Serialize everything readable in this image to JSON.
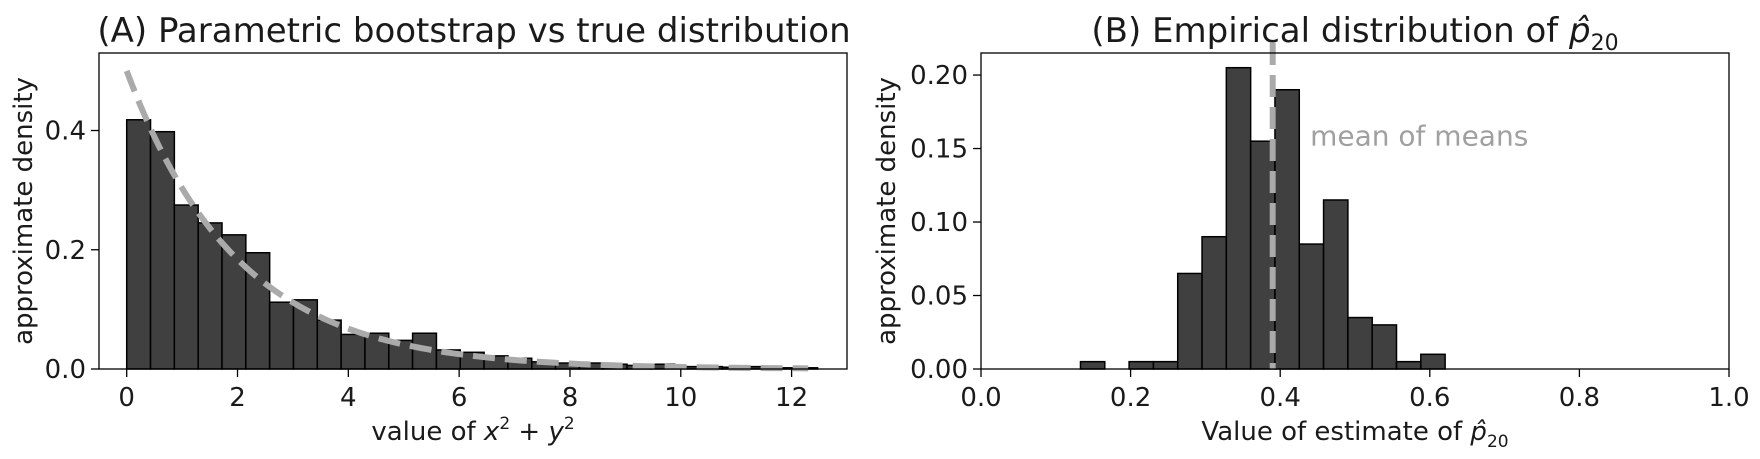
{
  "chart_data": [
    {
      "type": "bar",
      "title": "(A) Parametric bootstrap vs true distribution",
      "xlabel": "value of x² + y²",
      "ylabel": "approximate density",
      "xlim": [
        -0.5,
        13.0
      ],
      "ylim": [
        0,
        0.53
      ],
      "xticks": [
        0,
        2,
        4,
        6,
        8,
        10,
        12
      ],
      "yticks": [
        0.0,
        0.2,
        0.4
      ],
      "ytick_decimals": 1,
      "grid": false,
      "bin_edges": [
        0,
        0.43,
        0.86,
        1.29,
        1.72,
        2.15,
        2.58,
        3.01,
        3.44,
        3.87,
        4.3,
        4.73,
        5.16,
        5.59,
        6.02,
        6.45,
        6.88,
        7.31,
        7.74,
        8.17,
        8.6,
        9.03,
        9.46,
        9.89,
        10.32,
        10.75,
        11.18,
        11.61,
        12.04,
        12.47
      ],
      "values": [
        0.418,
        0.398,
        0.275,
        0.245,
        0.225,
        0.195,
        0.112,
        0.116,
        0.082,
        0.058,
        0.06,
        0.048,
        0.06,
        0.032,
        0.028,
        0.022,
        0.018,
        0.012,
        0.01,
        0.01,
        0.008,
        0.006,
        0.008,
        0.004,
        0.004,
        0.003,
        0.004,
        0.002,
        0.002
      ],
      "overlay": {
        "type": "line",
        "style": "dashed",
        "color": "#aaaaaa",
        "function": "0.5*exp(-x/2)",
        "x_range": [
          0,
          12.3
        ]
      }
    },
    {
      "type": "bar",
      "title_prefix": "(B) Empirical distribution of ",
      "xlabel_prefix": "Value of estimate of ",
      "ylabel": "approximate density",
      "xlim": [
        0.0,
        1.0
      ],
      "ylim": [
        0,
        0.215
      ],
      "xticks": [
        0.0,
        0.2,
        0.4,
        0.6,
        0.8,
        1.0
      ],
      "yticks": [
        0.0,
        0.05,
        0.1,
        0.15,
        0.2
      ],
      "ytick_decimals": 2,
      "grid": false,
      "bin_edges": [
        0.133,
        0.1655,
        0.198,
        0.2305,
        0.263,
        0.2955,
        0.328,
        0.3605,
        0.393,
        0.4255,
        0.458,
        0.4905,
        0.523,
        0.5555,
        0.588,
        0.6205
      ],
      "values": [
        0.005,
        0.0,
        0.005,
        0.005,
        0.065,
        0.09,
        0.205,
        0.155,
        0.19,
        0.085,
        0.115,
        0.035,
        0.03,
        0.005,
        0.01
      ],
      "vline": {
        "x": 0.39,
        "style": "dashed",
        "color": "#aaaaaa"
      },
      "annotation": {
        "text": "mean of means",
        "x": 0.44,
        "y": 0.152,
        "color": "#a0a0a0"
      }
    }
  ]
}
